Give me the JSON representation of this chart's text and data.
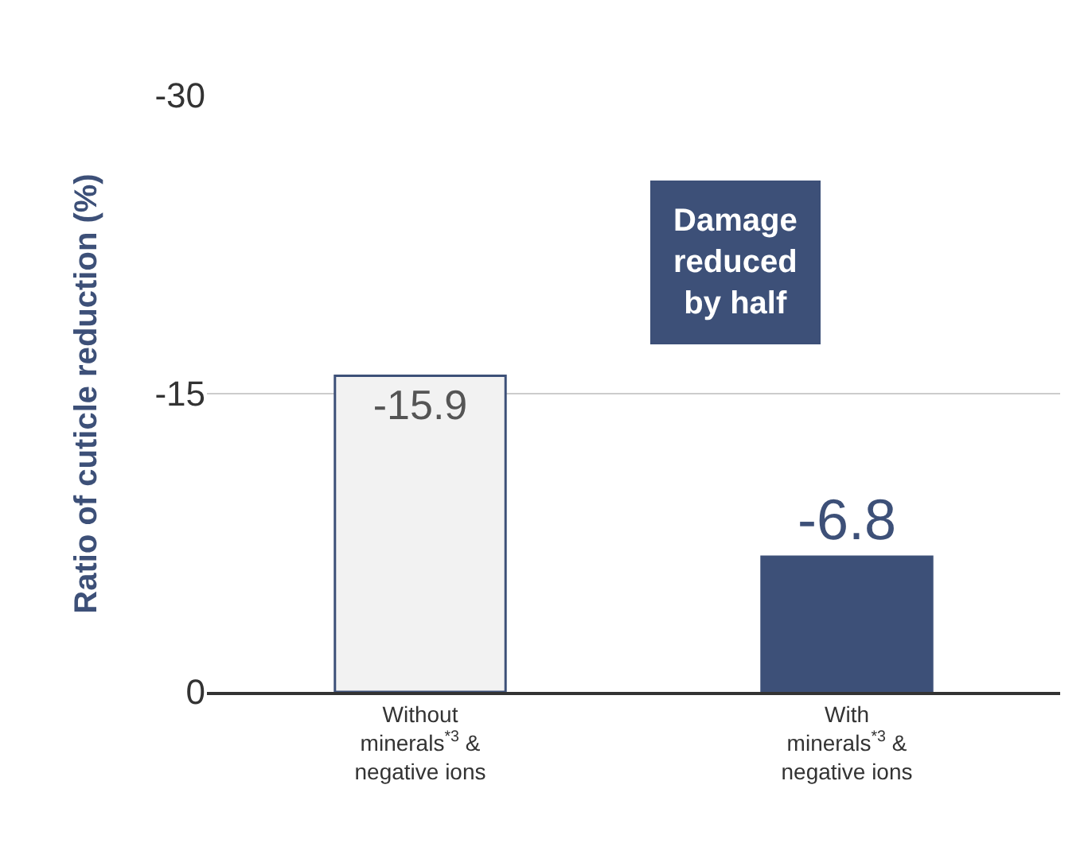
{
  "chart_data": {
    "type": "bar",
    "ylabel": "Ratio of cuticle reduction (%)",
    "categories": [
      "Without\nminerals$^{*3}$ &\nnegative ions",
      "With\nminerals$^{*3}$ &\nnegative ions"
    ],
    "values": [
      -15.9,
      -6.8
    ],
    "colors": [
      "#f2f2f2",
      "#3d5078"
    ],
    "ylim": [
      0,
      -30
    ],
    "yticks": [
      -30,
      -15,
      0
    ],
    "grid": "y",
    "data_labels": true,
    "annotations": [
      "Damage\nreduced\nby half"
    ]
  }
}
